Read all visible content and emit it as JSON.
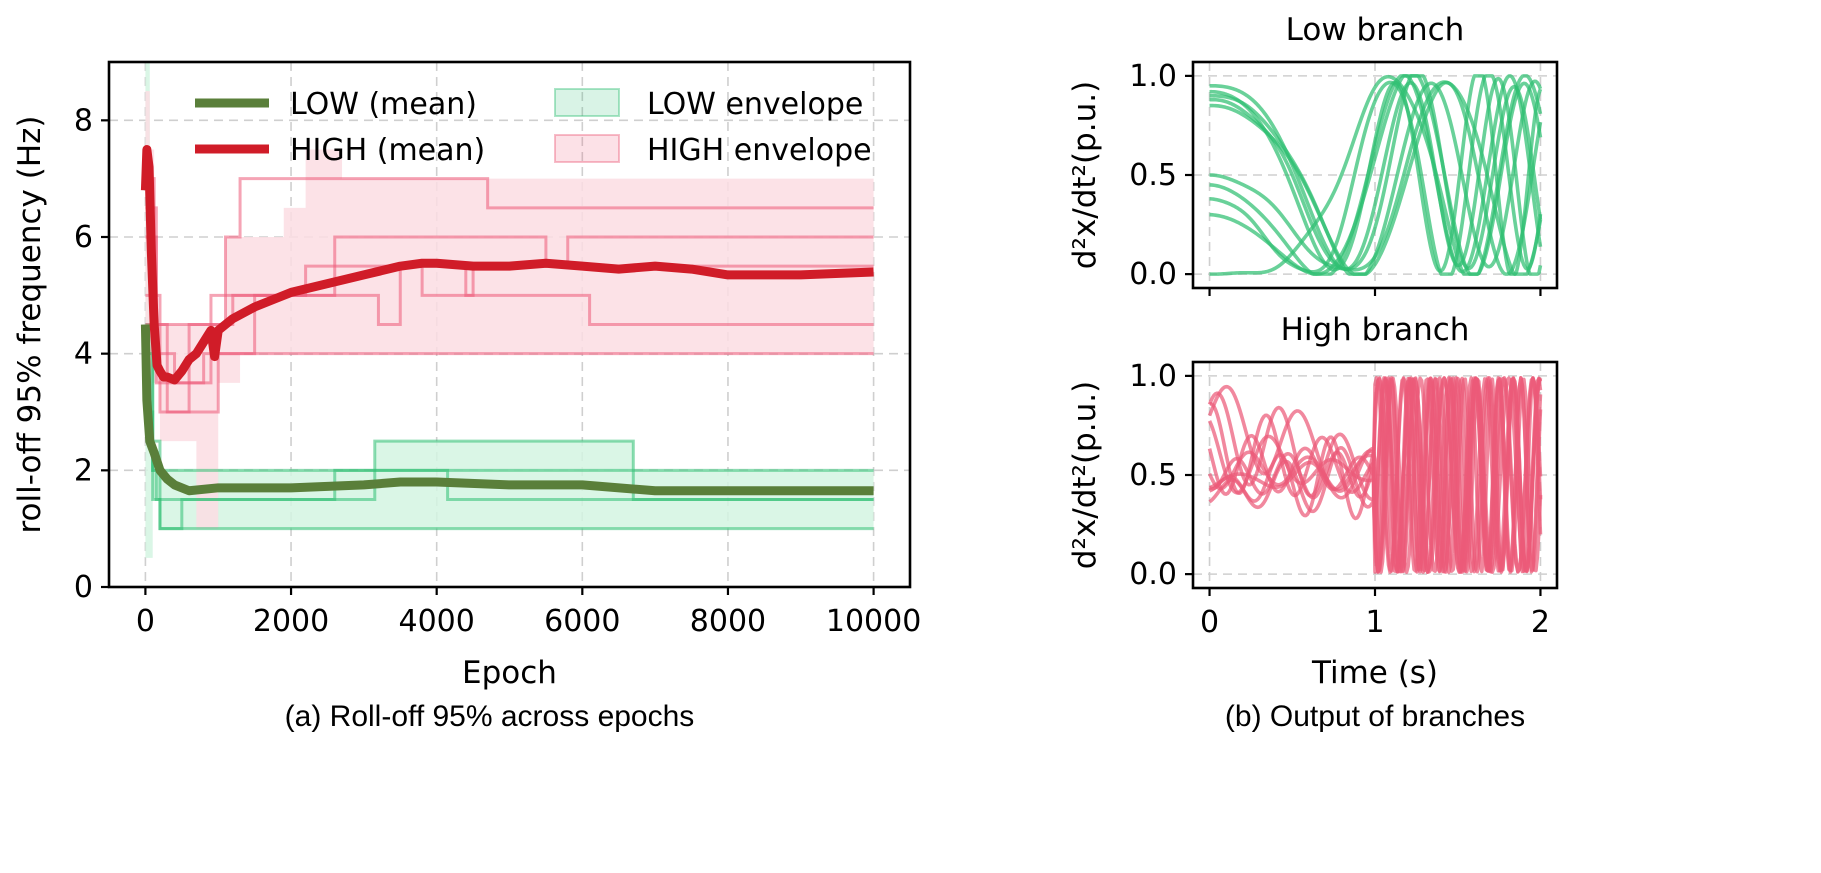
{
  "chart_data": [
    {
      "type": "line",
      "caption": "(a) Roll-off 95% across epochs",
      "xlabel": "Epoch",
      "ylabel": "roll-off 95% frequency (Hz)",
      "xlim": [
        -500,
        10500
      ],
      "ylim": [
        0,
        9
      ],
      "xticks": [
        0,
        2000,
        4000,
        6000,
        8000,
        10000
      ],
      "yticks": [
        0,
        2,
        4,
        6,
        8
      ],
      "grid": true,
      "legend_position": "top",
      "colors": {
        "low_mean": "#5a7f3a",
        "high_mean": "#d01c28",
        "low_env_fill": "#d4f5e2",
        "low_env_line": "#2fbf72",
        "high_env_fill": "#fcdde3",
        "high_env_line": "#ec5a78"
      },
      "legend": [
        {
          "label": "LOW (mean)",
          "kind": "line",
          "color": "#5a7f3a"
        },
        {
          "label": "HIGH (mean)",
          "kind": "line",
          "color": "#d01c28"
        },
        {
          "label": "LOW envelope",
          "kind": "patch",
          "color": "#2fbf72"
        },
        {
          "label": "HIGH envelope",
          "kind": "patch",
          "color": "#ec5a78"
        }
      ],
      "series": [
        {
          "name": "LOW (mean)",
          "role": "mean",
          "x": [
            0,
            20,
            60,
            120,
            200,
            300,
            400,
            600,
            1000,
            2000,
            3000,
            3500,
            4000,
            5000,
            6000,
            7000,
            8000,
            9000,
            10000
          ],
          "y": [
            4.5,
            3.2,
            2.5,
            2.3,
            2.0,
            1.85,
            1.75,
            1.65,
            1.7,
            1.7,
            1.75,
            1.8,
            1.8,
            1.75,
            1.75,
            1.65,
            1.65,
            1.65,
            1.65
          ]
        },
        {
          "name": "HIGH (mean)",
          "role": "mean",
          "x": [
            0,
            20,
            50,
            80,
            120,
            160,
            200,
            250,
            300,
            400,
            500,
            600,
            700,
            800,
            900,
            950,
            1000,
            1200,
            1500,
            1800,
            2000,
            2500,
            3000,
            3500,
            3800,
            4000,
            4500,
            5000,
            5500,
            6000,
            6500,
            7000,
            7500,
            8000,
            9000,
            10000
          ],
          "y": [
            6.8,
            7.5,
            7.2,
            5.8,
            4.5,
            3.8,
            3.7,
            3.6,
            3.6,
            3.55,
            3.7,
            3.9,
            4.0,
            4.2,
            4.4,
            3.95,
            4.4,
            4.6,
            4.8,
            4.95,
            5.05,
            5.2,
            5.35,
            5.5,
            5.55,
            5.55,
            5.5,
            5.5,
            5.55,
            5.5,
            5.45,
            5.5,
            5.45,
            5.35,
            5.35,
            5.4
          ]
        },
        {
          "name": "LOW envelope",
          "role": "envelope",
          "upper_x": [
            0,
            60,
            100,
            300,
            3100,
            3150,
            6650,
            6700,
            10000
          ],
          "upper_y": [
            9.0,
            2.5,
            2.0,
            2.0,
            2.0,
            2.5,
            2.5,
            2.0,
            2.0
          ],
          "lower_x": [
            0,
            100,
            200,
            300,
            10000
          ],
          "lower_y": [
            0.5,
            1.5,
            1.0,
            1.0,
            1.0
          ]
        },
        {
          "name": "HIGH envelope",
          "role": "envelope",
          "upper_x": [
            0,
            60,
            120,
            300,
            900,
            1100,
            1600,
            1900,
            2200,
            2700,
            2900,
            3500,
            4300,
            10000
          ],
          "upper_y": [
            8.5,
            7.5,
            4.5,
            4.5,
            4.5,
            6.0,
            6.0,
            6.5,
            7.5,
            7.0,
            7.0,
            7.0,
            7.0,
            7.0
          ],
          "lower_x": [
            0,
            100,
            200,
            400,
            700,
            1000,
            1300,
            7500,
            7600,
            10000
          ],
          "lower_y": [
            3.0,
            3.5,
            2.5,
            2.5,
            1.0,
            3.5,
            4.0,
            4.0,
            4.0,
            4.0
          ]
        }
      ],
      "envelope_steps": {
        "low": [
          {
            "x": [
              0,
              100,
              200,
              400,
              600,
              900,
              1000,
              3000,
              5000,
              7000,
              10000
            ],
            "y": [
              4.5,
              2.0,
              2.0,
              2.0,
              2.0,
              2.0,
              2.0,
              2.0,
              2.0,
              2.0,
              2.0
            ]
          },
          {
            "x": [
              0,
              100,
              150,
              200,
              300,
              500,
              1000,
              3000,
              3100,
              3150,
              6650,
              6700,
              10000
            ],
            "y": [
              4.0,
              2.0,
              1.5,
              1.5,
              1.5,
              1.5,
              1.5,
              1.5,
              1.5,
              2.5,
              2.5,
              1.5,
              1.5
            ]
          },
          {
            "x": [
              0,
              100,
              200,
              300,
              500,
              2550,
              2600,
              4100,
              4150,
              7000,
              10000
            ],
            "y": [
              3.0,
              1.5,
              1.0,
              1.0,
              1.5,
              1.5,
              2.0,
              2.0,
              1.5,
              1.5,
              1.5
            ]
          },
          {
            "x": [
              0,
              200,
              300,
              10000
            ],
            "y": [
              2.5,
              1.0,
              1.0,
              1.0
            ]
          }
        ],
        "high": [
          {
            "x": [
              0,
              120,
              300,
              1100,
              1300,
              2500,
              3400,
              4300,
              4700,
              10000
            ],
            "y": [
              7.0,
              4.5,
              4.5,
              6.0,
              7.0,
              7.0,
              7.0,
              7.0,
              6.5,
              6.5
            ]
          },
          {
            "x": [
              0,
              150,
              400,
              900,
              1600,
              2600,
              3500,
              4300,
              5500,
              5800,
              6100,
              10000
            ],
            "y": [
              6.5,
              4.0,
              3.5,
              5.0,
              5.0,
              6.0,
              6.0,
              6.0,
              5.5,
              6.0,
              6.0,
              6.0
            ]
          },
          {
            "x": [
              0,
              150,
              300,
              600,
              900,
              1200,
              1800,
              2600,
              3200,
              3500,
              4400,
              5500,
              6100,
              6600,
              7000,
              10000
            ],
            "y": [
              6.0,
              3.5,
              3.0,
              4.5,
              4.5,
              5.0,
              5.0,
              5.0,
              4.5,
              5.5,
              5.0,
              5.0,
              4.5,
              4.5,
              4.5,
              4.5
            ]
          },
          {
            "x": [
              0,
              200,
              400,
              1000,
              1300,
              7500,
              7600,
              10000
            ],
            "y": [
              5.0,
              3.0,
              3.0,
              4.0,
              4.0,
              4.0,
              4.0,
              4.0
            ]
          },
          {
            "x": [
              0,
              300,
              800,
              1500,
              2200,
              3000,
              3800,
              4500,
              6000,
              7100,
              8000,
              10000
            ],
            "y": [
              4.5,
              3.5,
              4.0,
              5.0,
              5.5,
              5.5,
              5.0,
              5.5,
              5.5,
              5.5,
              5.5,
              5.5
            ]
          }
        ]
      }
    },
    {
      "type": "line",
      "title": "Low branch",
      "xlabel": "",
      "ylabel": "d²x/dt²(p.u.)",
      "xlim": [
        -0.1,
        2.1
      ],
      "ylim": [
        -0.07,
        1.07
      ],
      "xticks": [
        0,
        1,
        2
      ],
      "yticks": [
        0.0,
        0.5,
        1.0
      ],
      "grid": true,
      "color": "#2fbf72",
      "curves": [
        {
          "y0": 0.9,
          "amp": 0.5,
          "freq": 0.55,
          "phase": 0.0,
          "freq2": 2.0
        },
        {
          "y0": 0.95,
          "amp": 0.5,
          "freq": 0.7,
          "phase": 0.6,
          "freq2": 1.4
        },
        {
          "y0": 0.88,
          "amp": 0.5,
          "freq": 0.62,
          "phase": 1.1,
          "freq2": 2.5
        },
        {
          "y0": 0.85,
          "amp": 0.5,
          "freq": 0.48,
          "phase": 1.8,
          "freq2": 1.8
        },
        {
          "y0": 0.92,
          "amp": 0.5,
          "freq": 0.8,
          "phase": 2.4,
          "freq2": 1.2
        },
        {
          "y0": 0.5,
          "amp": 0.5,
          "freq": 0.4,
          "phase": 3.0,
          "freq2": 2.2
        },
        {
          "y0": 0.45,
          "amp": 0.5,
          "freq": 0.58,
          "phase": 3.7,
          "freq2": 1.6
        },
        {
          "y0": 0.38,
          "amp": 0.5,
          "freq": 0.66,
          "phase": 4.3,
          "freq2": 2.8
        },
        {
          "y0": 0.3,
          "amp": 0.5,
          "freq": 0.52,
          "phase": 5.0,
          "freq2": 1.1
        },
        {
          "y0": 0.0,
          "amp": 0.5,
          "freq": 0.45,
          "phase": 5.6,
          "freq2": 2.4
        }
      ]
    },
    {
      "type": "line",
      "title": "High branch",
      "caption": "(b) Output of branches",
      "xlabel": "Time (s)",
      "ylabel": "d²x/dt²(p.u.)",
      "xlim": [
        -0.1,
        2.1
      ],
      "ylim": [
        -0.07,
        1.07
      ],
      "xticks": [
        0,
        1,
        2
      ],
      "yticks": [
        0.0,
        0.5,
        1.0
      ],
      "grid": true,
      "color": "#ec5a78",
      "curves": [
        {
          "y0": 0.8,
          "phase": 0.0,
          "freq": 3.2
        },
        {
          "y0": 0.72,
          "phase": 0.7,
          "freq": 3.8
        },
        {
          "y0": 0.65,
          "phase": 1.3,
          "freq": 4.3
        },
        {
          "y0": 0.6,
          "phase": 1.9,
          "freq": 3.5
        },
        {
          "y0": 0.57,
          "phase": 2.5,
          "freq": 4.6
        },
        {
          "y0": 0.54,
          "phase": 3.1,
          "freq": 4.0
        },
        {
          "y0": 0.5,
          "phase": 3.8,
          "freq": 5.0
        },
        {
          "y0": 0.47,
          "phase": 4.4,
          "freq": 3.7
        },
        {
          "y0": 0.44,
          "phase": 5.0,
          "freq": 4.8
        },
        {
          "y0": 0.4,
          "phase": 5.6,
          "freq": 4.2
        }
      ]
    }
  ]
}
